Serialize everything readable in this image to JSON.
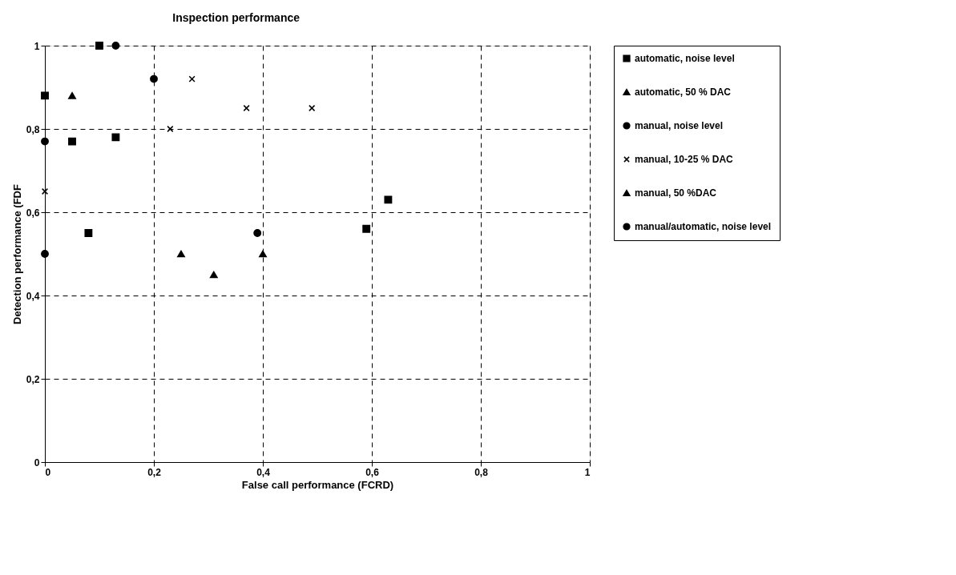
{
  "chart_data": {
    "type": "scatter",
    "title": "Inspection performance",
    "xlabel": "False call performance (FCRD)",
    "ylabel": "Detection performance (FDF",
    "xlim": [
      0,
      1
    ],
    "ylim": [
      0,
      1
    ],
    "xticks": [
      0,
      {
        "value": 0.2,
        "label": "0,2"
      },
      {
        "value": 0.4,
        "label": "0,4"
      },
      {
        "value": 0.6,
        "label": "0,6"
      },
      {
        "value": 0.8,
        "label": "0,8"
      },
      1
    ],
    "yticks": [
      0,
      {
        "value": 0.2,
        "label": "0,2"
      },
      {
        "value": 0.4,
        "label": "0,4"
      },
      {
        "value": 0.6,
        "label": "0,6"
      },
      {
        "value": 0.8,
        "label": "0,8"
      },
      1
    ],
    "grid": true,
    "legend": "right",
    "series": [
      {
        "name": "automatic, noise level",
        "color": "#000000",
        "marker": "square",
        "x": [
          0,
          0.05,
          0.13,
          0.08,
          0.59,
          0.63,
          0.1
        ],
        "values": [
          0.88,
          0.77,
          0.78,
          0.55,
          0.56,
          0.63,
          1.0
        ]
      },
      {
        "name": "automatic, 50 % DAC",
        "color": "#000000",
        "marker": "triangle",
        "x": [
          0.4
        ],
        "values": [
          0.5
        ]
      },
      {
        "name": "manual, noise level",
        "color": "#000000",
        "marker": "circle",
        "x": [
          0.13,
          0
        ],
        "values": [
          1.0,
          0.5
        ]
      },
      {
        "name": "manual, 10-25 % DAC",
        "color": "#000000",
        "marker": "cross",
        "x": [
          0,
          0.23,
          0.27,
          0.37,
          0.49
        ],
        "values": [
          0.65,
          0.8,
          0.92,
          0.85,
          0.85
        ]
      },
      {
        "name": "manual, 50 %DAC",
        "color": "#000000",
        "marker": "triangle",
        "x": [
          0.05,
          0.25,
          0.31
        ],
        "values": [
          0.88,
          0.5,
          0.45
        ]
      },
      {
        "name": "manual/automatic, noise level",
        "color": "#000000",
        "marker": "circle",
        "x": [
          0,
          0.2,
          0.39
        ],
        "values": [
          0.77,
          0.92,
          0.55
        ]
      }
    ]
  }
}
